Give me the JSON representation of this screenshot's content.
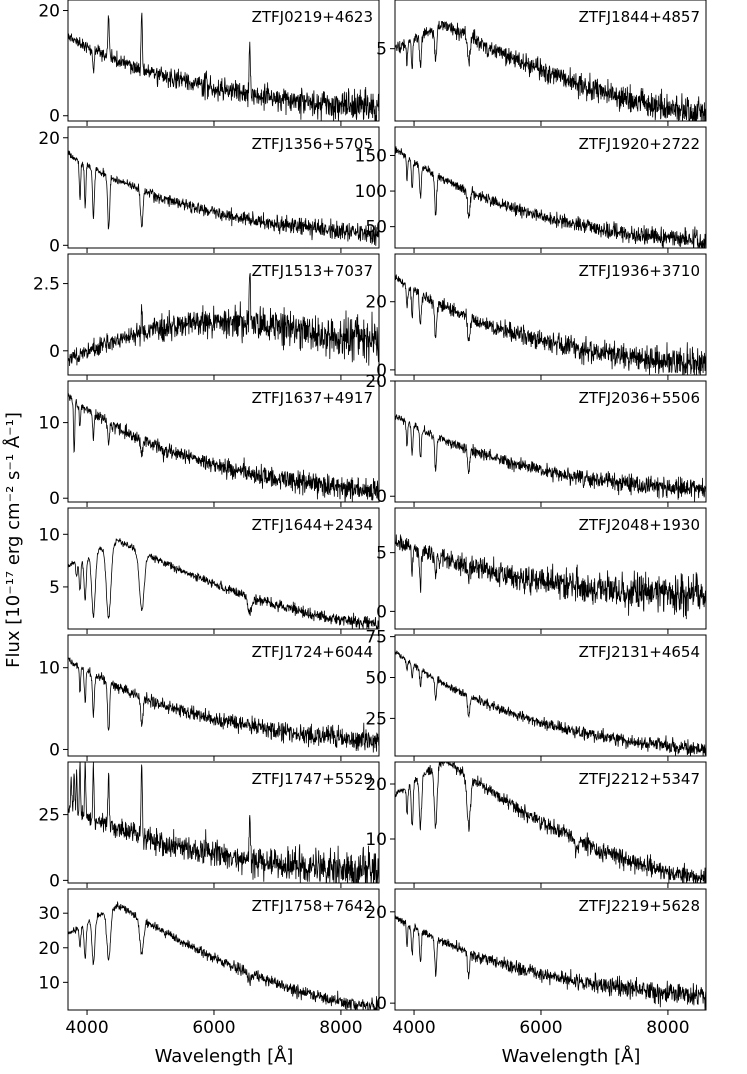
{
  "figure": {
    "ylabel": "Flux [10⁻¹⁷ erg cm⁻² s⁻¹ Å⁻¹]",
    "xlabel": "Wavelength [Å]",
    "line_color": "#000000"
  },
  "chart_data": {
    "type": "line",
    "xlim": [
      3700,
      8600
    ],
    "xticks": [
      4000,
      6000,
      8000
    ],
    "xlabel": "Wavelength [Å]",
    "ylabel": "Flux [10⁻¹⁷ erg cm⁻² s⁻¹ Å⁻¹]",
    "panels": [
      {
        "name": "ZTFJ0219+4623",
        "col": 0,
        "row": 0,
        "ylim": [
          -1,
          22
        ],
        "yticks": [
          0,
          20
        ],
        "start": 15,
        "end": 1.5,
        "shape": "exp",
        "noise": 0.11,
        "seed": 11,
        "features": [
          [
            4101,
            -4,
            12
          ],
          [
            4340,
            8,
            10
          ],
          [
            4861,
            10,
            10
          ],
          [
            5876,
            1.5,
            10
          ],
          [
            6563,
            9,
            10
          ]
        ]
      },
      {
        "name": "ZTFJ1356+5705",
        "col": 0,
        "row": 1,
        "ylim": [
          -0.5,
          22
        ],
        "yticks": [
          0,
          20
        ],
        "start": 17,
        "end": 2,
        "shape": "exp",
        "noise": 0.06,
        "seed": 12,
        "features": [
          [
            3889,
            -7,
            11
          ],
          [
            3970,
            -8,
            11
          ],
          [
            4101,
            -9,
            14
          ],
          [
            4340,
            -10,
            16
          ],
          [
            4861,
            -7,
            18
          ]
        ]
      },
      {
        "name": "ZTFJ1513+7037",
        "col": 0,
        "row": 2,
        "ylim": [
          -0.9,
          3.6
        ],
        "yticks": [
          0,
          2.5
        ],
        "start": -0.3,
        "end": 0.5,
        "shape": "hump",
        "noise": 0.45,
        "seed": 13,
        "features": [
          [
            4861,
            0.6,
            8
          ],
          [
            6563,
            2.0,
            9
          ]
        ]
      },
      {
        "name": "ZTFJ1637+4917",
        "col": 0,
        "row": 3,
        "ylim": [
          -0.5,
          15.5
        ],
        "yticks": [
          0,
          10
        ],
        "start": 13.5,
        "end": 1,
        "shape": "exp",
        "noise": 0.07,
        "seed": 14,
        "features": [
          [
            3797,
            -7,
            10
          ],
          [
            3889,
            -3,
            11
          ],
          [
            4101,
            -3,
            12
          ],
          [
            4340,
            -3,
            13
          ],
          [
            4861,
            -2,
            14
          ],
          [
            5200,
            -1.2,
            10
          ]
        ]
      },
      {
        "name": "ZTFJ1644+2434",
        "col": 0,
        "row": 4,
        "ylim": [
          1,
          12.5
        ],
        "yticks": [
          5,
          10
        ],
        "start": 7,
        "end": 1.5,
        "shape": "peak",
        "noise": 0.05,
        "seed": 15,
        "features": [
          [
            3835,
            -1.5,
            12
          ],
          [
            3889,
            -3,
            14
          ],
          [
            3970,
            -4,
            18
          ],
          [
            4101,
            -6,
            28
          ],
          [
            4340,
            -7,
            35
          ],
          [
            4861,
            -5.5,
            38
          ],
          [
            6563,
            -1.6,
            30
          ]
        ]
      },
      {
        "name": "ZTFJ1724+6044",
        "col": 0,
        "row": 5,
        "ylim": [
          -0.8,
          14
        ],
        "yticks": [
          0,
          10
        ],
        "start": 11,
        "end": 1,
        "shape": "exp",
        "noise": 0.07,
        "seed": 16,
        "features": [
          [
            3889,
            -3,
            10
          ],
          [
            3970,
            -4,
            12
          ],
          [
            4101,
            -5,
            14
          ],
          [
            4340,
            -6,
            16
          ],
          [
            4861,
            -3.5,
            18
          ]
        ]
      },
      {
        "name": "ZTFJ1747+5529",
        "col": 0,
        "row": 6,
        "ylim": [
          -1,
          45
        ],
        "yticks": [
          0,
          25
        ],
        "start": 28,
        "end": 3,
        "shape": "exp",
        "noise": 0.15,
        "seed": 17,
        "features": [
          [
            3750,
            12,
            8
          ],
          [
            3797,
            14,
            8
          ],
          [
            3835,
            16,
            8
          ],
          [
            3889,
            18,
            8
          ],
          [
            3970,
            20,
            9
          ],
          [
            4101,
            20,
            9
          ],
          [
            4340,
            24,
            9
          ],
          [
            4861,
            28,
            10
          ],
          [
            5876,
            5,
            10
          ],
          [
            6563,
            18,
            10
          ],
          [
            8345,
            5,
            8
          ],
          [
            8440,
            6,
            8
          ],
          [
            8545,
            5,
            8
          ]
        ]
      },
      {
        "name": "ZTFJ1758+7642",
        "col": 0,
        "row": 7,
        "ylim": [
          2,
          37
        ],
        "yticks": [
          10,
          20,
          30
        ],
        "start": 24,
        "end": 3,
        "shape": "peak",
        "noise": 0.05,
        "seed": 18,
        "features": [
          [
            3889,
            -6,
            12
          ],
          [
            3970,
            -10,
            16
          ],
          [
            4101,
            -13,
            22
          ],
          [
            4340,
            -15,
            28
          ],
          [
            4861,
            -10,
            30
          ],
          [
            6563,
            -2,
            28
          ]
        ]
      },
      {
        "name": "ZTFJ1844+4857",
        "col": 1,
        "row": 0,
        "ylim": [
          -0.2,
          8.5
        ],
        "yticks": [
          5
        ],
        "start": 5,
        "end": 0.4,
        "shape": "peak",
        "noise": 0.12,
        "seed": 21,
        "features": [
          [
            3889,
            -1.5,
            10
          ],
          [
            3970,
            -2,
            11
          ],
          [
            4101,
            -2.4,
            13
          ],
          [
            4340,
            -2.5,
            15
          ],
          [
            4861,
            -1.8,
            20
          ],
          [
            5170,
            -0.6,
            12
          ]
        ]
      },
      {
        "name": "ZTFJ1920+2722",
        "col": 1,
        "row": 1,
        "ylim": [
          20,
          190
        ],
        "yticks": [
          50,
          100,
          150
        ],
        "start": 160,
        "end": 28,
        "shape": "exp",
        "noise": 0.05,
        "seed": 22,
        "features": [
          [
            3889,
            -30,
            10
          ],
          [
            3970,
            -40,
            12
          ],
          [
            4101,
            -45,
            14
          ],
          [
            4340,
            -55,
            16
          ],
          [
            4861,
            -35,
            20
          ]
        ]
      },
      {
        "name": "ZTFJ1936+3710",
        "col": 1,
        "row": 2,
        "ylim": [
          -1.5,
          34
        ],
        "yticks": [
          0,
          20
        ],
        "start": 27,
        "end": 1.5,
        "shape": "exp",
        "noise": 0.09,
        "seed": 23,
        "features": [
          [
            3889,
            -6,
            10
          ],
          [
            3970,
            -8,
            12
          ],
          [
            4101,
            -9,
            14
          ],
          [
            4340,
            -10,
            16
          ],
          [
            4861,
            -7,
            18
          ]
        ]
      },
      {
        "name": "ZTFJ2036+5506",
        "col": 1,
        "row": 3,
        "ylim": [
          -1,
          20
        ],
        "yticks": [
          0,
          20
        ],
        "start": 14,
        "end": 1,
        "shape": "exp",
        "noise": 0.07,
        "seed": 24,
        "features": [
          [
            3889,
            -4,
            10
          ],
          [
            3970,
            -5,
            12
          ],
          [
            4101,
            -5,
            13
          ],
          [
            4340,
            -6,
            14
          ],
          [
            4861,
            -4,
            16
          ]
        ]
      },
      {
        "name": "ZTFJ2048+1930",
        "col": 1,
        "row": 4,
        "ylim": [
          -1.5,
          8.8
        ],
        "yticks": [
          0,
          5
        ],
        "start": 6,
        "end": 1.3,
        "shape": "exp",
        "noise": 0.16,
        "seed": 25,
        "features": [
          [
            3970,
            -2.5,
            10
          ],
          [
            4101,
            -3,
            12
          ],
          [
            4340,
            -2,
            12
          ],
          [
            4861,
            -1.2,
            12
          ],
          [
            6563,
            1.6,
            8
          ]
        ]
      },
      {
        "name": "ZTFJ2131+4654",
        "col": 1,
        "row": 5,
        "ylim": [
          2,
          76
        ],
        "yticks": [
          25,
          50,
          75
        ],
        "start": 66,
        "end": 6,
        "shape": "exp",
        "noise": 0.04,
        "seed": 26,
        "features": [
          [
            3889,
            -6,
            10
          ],
          [
            3970,
            -8,
            11
          ],
          [
            4101,
            -10,
            12
          ],
          [
            4340,
            -12,
            14
          ],
          [
            4861,
            -12,
            16
          ]
        ]
      },
      {
        "name": "ZTFJ2212+5347",
        "col": 1,
        "row": 6,
        "ylim": [
          2,
          24
        ],
        "yticks": [
          10,
          20
        ],
        "start": 18,
        "end": 3,
        "shape": "peak",
        "noise": 0.06,
        "seed": 27,
        "features": [
          [
            3889,
            -5,
            12
          ],
          [
            3970,
            -8,
            14
          ],
          [
            4101,
            -9,
            18
          ],
          [
            4340,
            -11,
            22
          ],
          [
            4861,
            -9,
            26
          ],
          [
            6563,
            -2,
            22
          ]
        ]
      },
      {
        "name": "ZTFJ2219+5628",
        "col": 1,
        "row": 7,
        "ylim": [
          -1.5,
          25
        ],
        "yticks": [
          0,
          20
        ],
        "start": 19,
        "end": 1.5,
        "shape": "exp",
        "noise": 0.07,
        "seed": 28,
        "features": [
          [
            3889,
            -5,
            10
          ],
          [
            3970,
            -6,
            12
          ],
          [
            4101,
            -7,
            13
          ],
          [
            4340,
            -8,
            14
          ],
          [
            4861,
            -6,
            16
          ]
        ]
      }
    ]
  }
}
